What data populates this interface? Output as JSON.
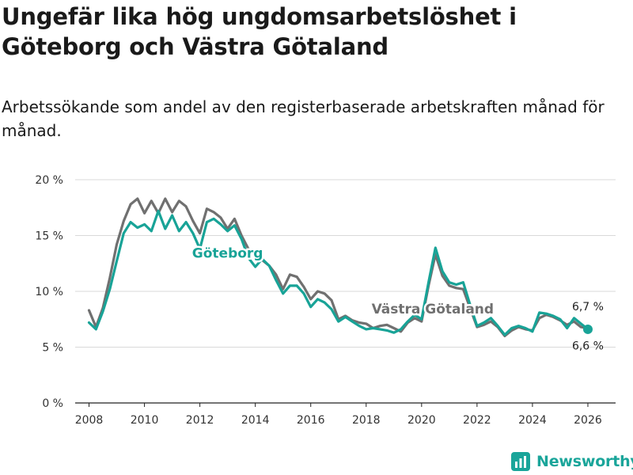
{
  "title": "Ungefär lika hög ungdomsarbetslöshet i Göteborg och Västra Götaland",
  "subtitle": "Arbetssökande som andel av den registerbaserade arbetskraften månad för månad.",
  "brand": {
    "name": "Newsworthy",
    "accent": "#1aa59a"
  },
  "colors": {
    "goteborg": "#18a397",
    "vastra": "#707070",
    "grid": "#d9d9d9"
  },
  "chart_data": {
    "type": "line",
    "title": "Ungefär lika hög ungdomsarbetslöshet i Göteborg och Västra Götaland",
    "xlabel": "",
    "ylabel": "",
    "xlim": [
      2007.5,
      2027.0
    ],
    "ylim": [
      0,
      20
    ],
    "x_ticks": [
      2008,
      2010,
      2012,
      2014,
      2016,
      2018,
      2020,
      2022,
      2024,
      2026
    ],
    "x_tick_labels": [
      "2008",
      "2010",
      "2012",
      "2014",
      "2016",
      "2018",
      "2020",
      "2022",
      "2024",
      "2026"
    ],
    "y_ticks": [
      0,
      5,
      10,
      15,
      20
    ],
    "y_tick_labels": [
      "0 %",
      "5 %",
      "10 %",
      "15 %",
      "20 %"
    ],
    "grid": true,
    "series": [
      {
        "name": "Västra Götaland",
        "label": "Västra Götaland",
        "color": "#707070",
        "end_label": "6,7 %",
        "x": [
          2008.0,
          2008.25,
          2008.5,
          2008.75,
          2009.0,
          2009.25,
          2009.5,
          2009.75,
          2010.0,
          2010.25,
          2010.5,
          2010.75,
          2011.0,
          2011.25,
          2011.5,
          2011.75,
          2012.0,
          2012.25,
          2012.5,
          2012.75,
          2013.0,
          2013.25,
          2013.5,
          2013.75,
          2014.0,
          2014.25,
          2014.5,
          2014.75,
          2015.0,
          2015.25,
          2015.5,
          2015.75,
          2016.0,
          2016.25,
          2016.5,
          2016.75,
          2017.0,
          2017.25,
          2017.5,
          2017.75,
          2018.0,
          2018.25,
          2018.5,
          2018.75,
          2019.0,
          2019.25,
          2019.5,
          2019.75,
          2020.0,
          2020.25,
          2020.5,
          2020.75,
          2021.0,
          2021.25,
          2021.5,
          2021.75,
          2022.0,
          2022.25,
          2022.5,
          2022.75,
          2023.0,
          2023.25,
          2023.5,
          2023.75,
          2024.0,
          2024.25,
          2024.5,
          2024.75,
          2025.0,
          2025.25,
          2025.5,
          2025.75,
          2026.0
        ],
        "values": [
          8.3,
          6.8,
          8.5,
          11.2,
          14.2,
          16.3,
          17.8,
          18.3,
          17.0,
          18.1,
          17.0,
          18.3,
          17.1,
          18.1,
          17.6,
          16.3,
          15.2,
          17.4,
          17.1,
          16.6,
          15.6,
          16.5,
          15.0,
          13.8,
          13.5,
          12.8,
          12.3,
          11.5,
          10.2,
          11.5,
          11.3,
          10.4,
          9.3,
          10.0,
          9.8,
          9.2,
          7.5,
          7.8,
          7.4,
          7.2,
          7.1,
          6.7,
          6.9,
          7.0,
          6.7,
          6.4,
          7.2,
          7.6,
          7.3,
          10.5,
          13.3,
          11.4,
          10.5,
          10.3,
          10.2,
          8.5,
          6.8,
          7.0,
          7.3,
          6.8,
          6.0,
          6.5,
          6.8,
          6.6,
          6.5,
          7.6,
          7.9,
          7.7,
          7.4,
          7.0,
          7.3,
          6.8,
          6.7
        ]
      },
      {
        "name": "Göteborg",
        "label": "Göteborg",
        "color": "#18a397",
        "end_label": "6,6 %",
        "x": [
          2008.0,
          2008.25,
          2008.5,
          2008.75,
          2009.0,
          2009.25,
          2009.5,
          2009.75,
          2010.0,
          2010.25,
          2010.5,
          2010.75,
          2011.0,
          2011.25,
          2011.5,
          2011.75,
          2012.0,
          2012.25,
          2012.5,
          2012.75,
          2013.0,
          2013.25,
          2013.5,
          2013.75,
          2014.0,
          2014.25,
          2014.5,
          2014.75,
          2015.0,
          2015.25,
          2015.5,
          2015.75,
          2016.0,
          2016.25,
          2016.5,
          2016.75,
          2017.0,
          2017.25,
          2017.5,
          2017.75,
          2018.0,
          2018.25,
          2018.5,
          2018.75,
          2019.0,
          2019.25,
          2019.5,
          2019.75,
          2020.0,
          2020.25,
          2020.5,
          2020.75,
          2021.0,
          2021.25,
          2021.5,
          2021.75,
          2022.0,
          2022.25,
          2022.5,
          2022.75,
          2023.0,
          2023.25,
          2023.5,
          2023.75,
          2024.0,
          2024.25,
          2024.5,
          2024.75,
          2025.0,
          2025.25,
          2025.5,
          2025.75,
          2026.0
        ],
        "values": [
          7.2,
          6.6,
          8.2,
          10.2,
          12.7,
          15.2,
          16.2,
          15.7,
          16.0,
          15.4,
          17.2,
          15.6,
          16.8,
          15.4,
          16.2,
          15.2,
          13.8,
          16.2,
          16.5,
          16.0,
          15.4,
          15.9,
          14.7,
          13.0,
          12.2,
          12.9,
          12.3,
          11.0,
          9.8,
          10.5,
          10.5,
          9.8,
          8.6,
          9.3,
          9.0,
          8.4,
          7.3,
          7.7,
          7.3,
          6.9,
          6.6,
          6.7,
          6.6,
          6.5,
          6.3,
          6.6,
          7.3,
          7.9,
          7.5,
          10.8,
          13.9,
          11.8,
          10.8,
          10.6,
          10.8,
          8.8,
          6.9,
          7.2,
          7.6,
          6.9,
          6.1,
          6.7,
          6.9,
          6.7,
          6.4,
          8.1,
          8.0,
          7.8,
          7.5,
          6.7,
          7.6,
          7.1,
          6.6
        ]
      }
    ]
  }
}
